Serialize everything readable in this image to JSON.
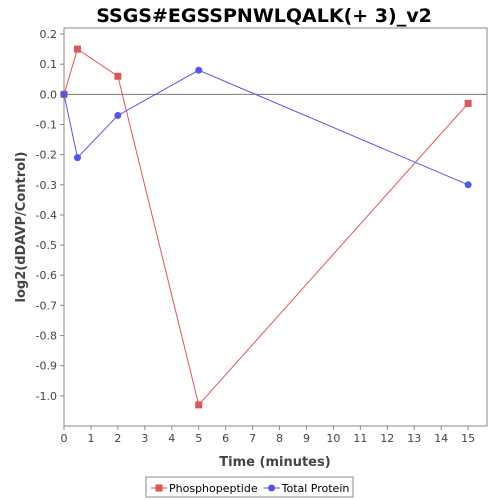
{
  "chart_data": {
    "type": "line",
    "title": "SSGS#EGSSPNWLQALK(+ 3)_v2",
    "xlabel": "Time (minutes)",
    "ylabel": "log2(dDAVP/Control)",
    "xlim": [
      0,
      15.7
    ],
    "ylim": [
      -1.1,
      0.22
    ],
    "x_ticks": [
      0,
      1,
      2,
      3,
      4,
      5,
      6,
      7,
      8,
      9,
      10,
      11,
      12,
      13,
      14,
      15
    ],
    "y_ticks": [
      0.2,
      0.1,
      0.0,
      -0.1,
      -0.2,
      -0.3,
      -0.4,
      -0.5,
      -0.6,
      -0.7,
      -0.8,
      -0.9,
      -1.0
    ],
    "y_tick_labels": [
      "0.2",
      "0.1",
      "0.0",
      "-0.1",
      "-0.2",
      "-0.3",
      "-0.4",
      "-0.5",
      "-0.6",
      "-0.7",
      "-0.8",
      "-0.9",
      "-1.0"
    ],
    "reference_line_y": 0,
    "grid": false,
    "legend_position": "bottom",
    "series": [
      {
        "name": "Phosphopeptide",
        "color": "#e05555",
        "marker": "square",
        "x": [
          0,
          0.5,
          2,
          5,
          15
        ],
        "y": [
          0.0,
          0.15,
          0.06,
          -1.03,
          -0.03
        ]
      },
      {
        "name": "Total Protein",
        "color": "#5555ee",
        "marker": "circle",
        "x": [
          0,
          0.5,
          2,
          5,
          15
        ],
        "y": [
          0.0,
          -0.21,
          -0.07,
          0.08,
          -0.3
        ]
      }
    ]
  }
}
